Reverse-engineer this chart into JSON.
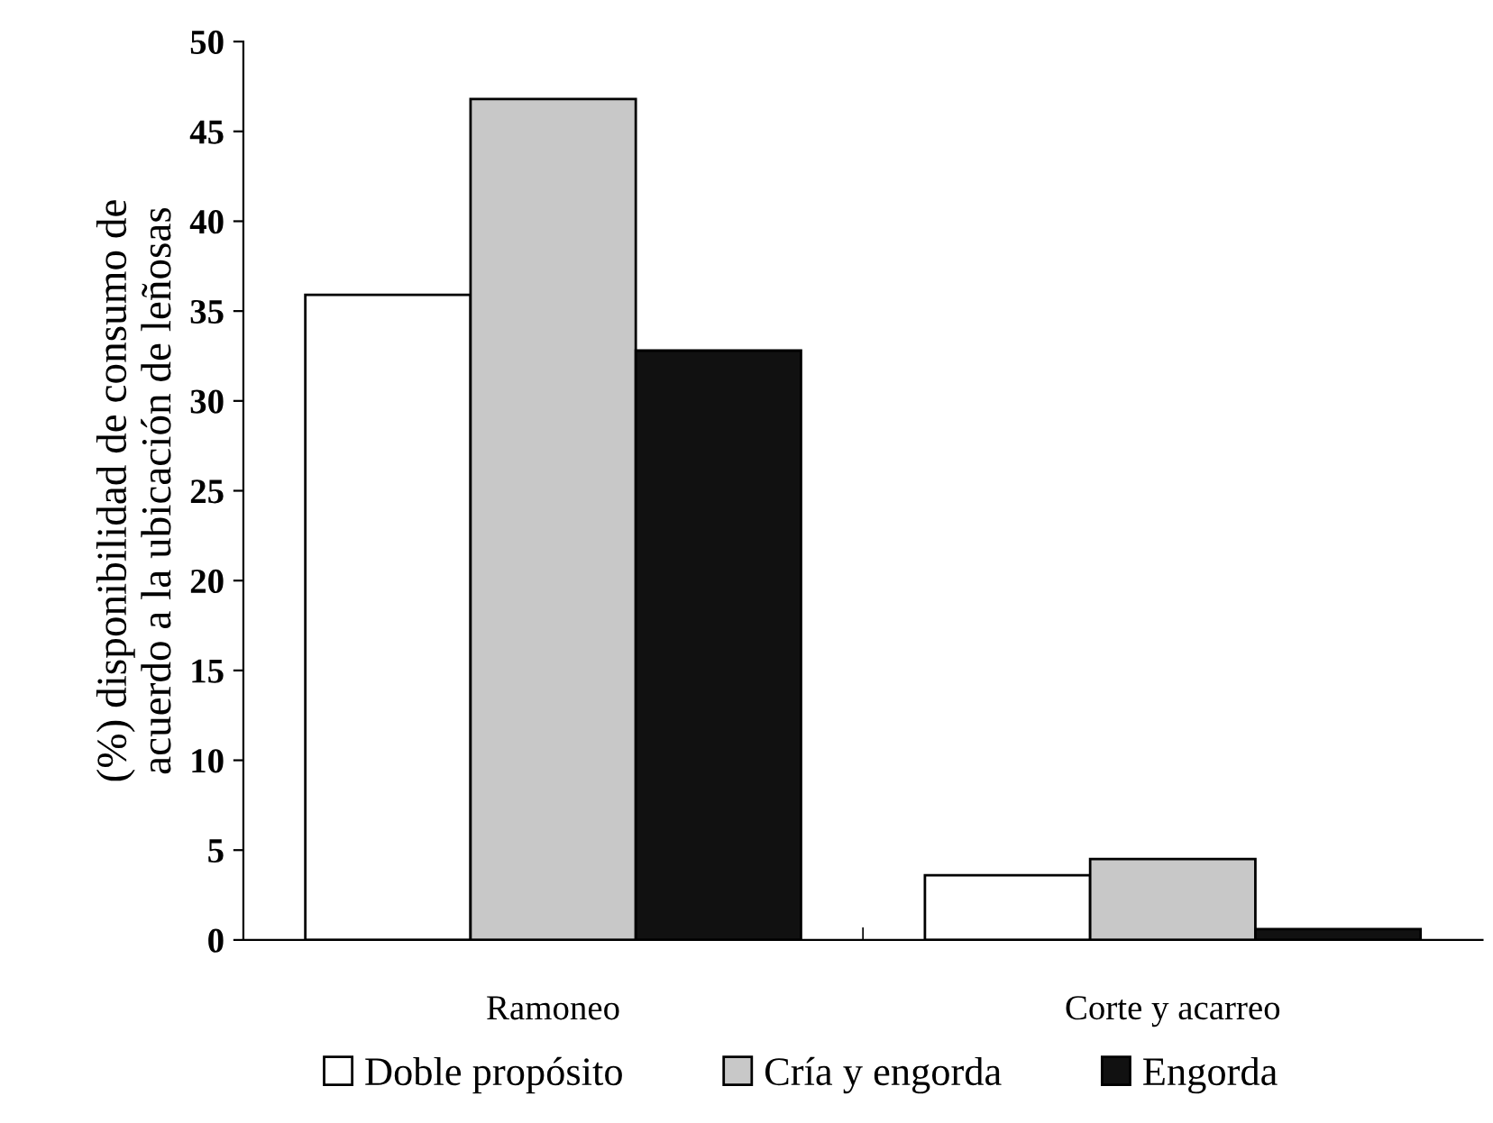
{
  "chart_data": {
    "type": "bar",
    "ylabel": "(%) disponibilidad de consumo de\nacuerdo a la ubicación de leñosas",
    "categories": [
      "Ramoneo",
      "Corte y acarreo"
    ],
    "series": [
      {
        "name": "Doble propósito",
        "color": "#ffffff",
        "values": [
          35.9,
          3.6
        ]
      },
      {
        "name": "Cría y engorda",
        "color": "#c8c8c8",
        "values": [
          46.8,
          4.5
        ]
      },
      {
        "name": "Engorda",
        "color": "#111111",
        "values": [
          32.8,
          0.6
        ]
      }
    ],
    "ylim": [
      0,
      50
    ],
    "yticks": [
      0,
      5,
      10,
      15,
      20,
      25,
      30,
      35,
      40,
      45,
      50
    ],
    "grid": false,
    "legend": "bottom"
  }
}
